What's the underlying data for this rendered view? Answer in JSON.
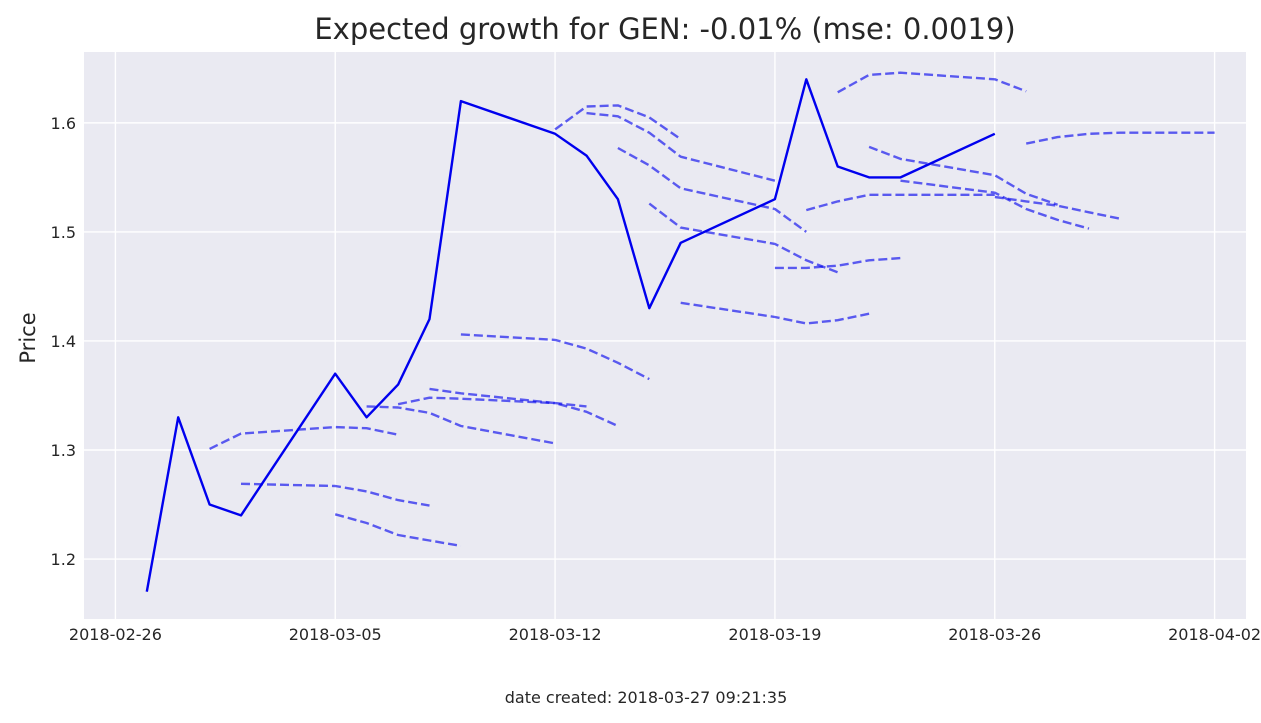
{
  "chart_data": {
    "type": "line",
    "title": "Expected growth for GEN: -0.01% (mse: 0.0019)",
    "xlabel": "",
    "ylabel": "Price",
    "footer": "date created: 2018-03-27 09:21:35",
    "xlim": [
      "2018-02-25",
      "2018-04-03"
    ],
    "ylim": [
      1.145,
      1.665
    ],
    "x_ticks": [
      "2018-02-26",
      "2018-03-05",
      "2018-03-12",
      "2018-03-19",
      "2018-03-26",
      "2018-04-02"
    ],
    "y_ticks": [
      1.2,
      1.3,
      1.4,
      1.5,
      1.6
    ],
    "grid": true,
    "background": "#eaeaf2",
    "grid_color": "#ffffff",
    "series_color": "#0000ee",
    "actual": {
      "x": [
        "2018-02-27",
        "2018-02-28",
        "2018-03-01",
        "2018-03-02",
        "2018-03-05",
        "2018-03-06",
        "2018-03-07",
        "2018-03-08",
        "2018-03-09",
        "2018-03-12",
        "2018-03-13",
        "2018-03-14",
        "2018-03-15",
        "2018-03-16",
        "2018-03-19",
        "2018-03-20",
        "2018-03-21",
        "2018-03-22",
        "2018-03-23",
        "2018-03-26"
      ],
      "y": [
        1.17,
        1.33,
        1.25,
        1.24,
        1.37,
        1.33,
        1.36,
        1.42,
        1.62,
        1.59,
        1.57,
        1.53,
        1.43,
        1.49,
        1.53,
        1.64,
        1.56,
        1.55,
        1.55,
        1.59
      ]
    },
    "forecasts": [
      {
        "x": [
          "2018-03-01",
          "2018-03-02",
          "2018-03-05",
          "2018-03-06",
          "2018-03-07"
        ],
        "y": [
          1.301,
          1.315,
          1.321,
          1.32,
          1.314
        ]
      },
      {
        "x": [
          "2018-03-02",
          "2018-03-05",
          "2018-03-06",
          "2018-03-07",
          "2018-03-08"
        ],
        "y": [
          1.269,
          1.267,
          1.262,
          1.254,
          1.249
        ]
      },
      {
        "x": [
          "2018-03-05",
          "2018-03-06",
          "2018-03-07",
          "2018-03-08",
          "2018-03-09"
        ],
        "y": [
          1.241,
          1.233,
          1.222,
          1.217,
          1.212
        ]
      },
      {
        "x": [
          "2018-03-06",
          "2018-03-07",
          "2018-03-08",
          "2018-03-09",
          "2018-03-12"
        ],
        "y": [
          1.34,
          1.339,
          1.334,
          1.322,
          1.306
        ]
      },
      {
        "x": [
          "2018-03-07",
          "2018-03-08",
          "2018-03-09",
          "2018-03-12",
          "2018-03-13"
        ],
        "y": [
          1.342,
          1.348,
          1.347,
          1.343,
          1.34
        ]
      },
      {
        "x": [
          "2018-03-08",
          "2018-03-09",
          "2018-03-12",
          "2018-03-13",
          "2018-03-14"
        ],
        "y": [
          1.356,
          1.352,
          1.343,
          1.335,
          1.322
        ]
      },
      {
        "x": [
          "2018-03-09",
          "2018-03-12",
          "2018-03-13",
          "2018-03-14",
          "2018-03-15"
        ],
        "y": [
          1.406,
          1.401,
          1.393,
          1.38,
          1.365
        ]
      },
      {
        "x": [
          "2018-03-12",
          "2018-03-13",
          "2018-03-14",
          "2018-03-15",
          "2018-03-16"
        ],
        "y": [
          1.594,
          1.615,
          1.616,
          1.605,
          1.585
        ]
      },
      {
        "x": [
          "2018-03-13",
          "2018-03-14",
          "2018-03-15",
          "2018-03-16",
          "2018-03-19"
        ],
        "y": [
          1.609,
          1.606,
          1.591,
          1.569,
          1.547
        ]
      },
      {
        "x": [
          "2018-03-14",
          "2018-03-15",
          "2018-03-16",
          "2018-03-19",
          "2018-03-20"
        ],
        "y": [
          1.577,
          1.561,
          1.54,
          1.521,
          1.5
        ]
      },
      {
        "x": [
          "2018-03-15",
          "2018-03-16",
          "2018-03-19",
          "2018-03-20",
          "2018-03-21"
        ],
        "y": [
          1.526,
          1.504,
          1.489,
          1.474,
          1.463
        ]
      },
      {
        "x": [
          "2018-03-16",
          "2018-03-19",
          "2018-03-20",
          "2018-03-21",
          "2018-03-22"
        ],
        "y": [
          1.435,
          1.422,
          1.416,
          1.419,
          1.425
        ]
      },
      {
        "x": [
          "2018-03-19",
          "2018-03-20",
          "2018-03-21",
          "2018-03-22",
          "2018-03-23"
        ],
        "y": [
          1.467,
          1.467,
          1.469,
          1.474,
          1.476
        ]
      },
      {
        "x": [
          "2018-03-20",
          "2018-03-21",
          "2018-03-22",
          "2018-03-23",
          "2018-03-26"
        ],
        "y": [
          1.52,
          1.528,
          1.534,
          1.534,
          1.534
        ]
      },
      {
        "x": [
          "2018-03-21",
          "2018-03-22",
          "2018-03-23",
          "2018-03-26",
          "2018-03-27"
        ],
        "y": [
          1.628,
          1.644,
          1.646,
          1.64,
          1.629
        ]
      },
      {
        "x": [
          "2018-03-22",
          "2018-03-23",
          "2018-03-26",
          "2018-03-27",
          "2018-03-28"
        ],
        "y": [
          1.578,
          1.567,
          1.552,
          1.535,
          1.525
        ]
      },
      {
        "x": [
          "2018-03-23",
          "2018-03-26",
          "2018-03-27",
          "2018-03-28",
          "2018-03-29"
        ],
        "y": [
          1.547,
          1.536,
          1.521,
          1.511,
          1.503
        ]
      },
      {
        "x": [
          "2018-03-26",
          "2018-03-27",
          "2018-03-28",
          "2018-03-29",
          "2018-03-30"
        ],
        "y": [
          1.532,
          1.528,
          1.524,
          1.518,
          1.512
        ]
      },
      {
        "x": [
          "2018-03-27",
          "2018-03-28",
          "2018-03-29",
          "2018-03-30",
          "2018-04-02"
        ],
        "y": [
          1.581,
          1.587,
          1.59,
          1.591,
          1.591
        ]
      }
    ]
  }
}
